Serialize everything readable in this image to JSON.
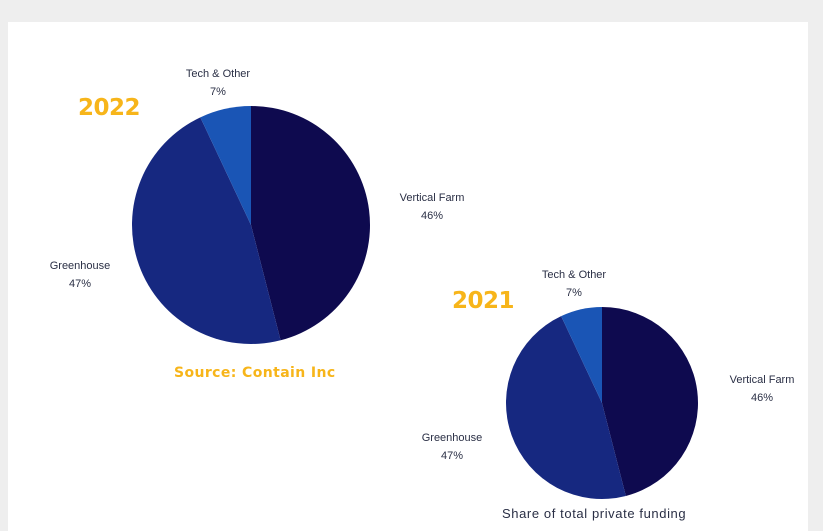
{
  "colors": {
    "accent": "#f7b51a",
    "vertical_farm": "#0e0a4f",
    "greenhouse": "#162880",
    "tech_other": "#1a55b5"
  },
  "source": "Source: Contain Inc",
  "caption": "Share of total private funding",
  "chart_data": [
    {
      "type": "pie",
      "title": "2022",
      "labels": [
        "Vertical Farm",
        "Greenhouse",
        "Tech & Other"
      ],
      "values": [
        46,
        47,
        7
      ],
      "value_labels": [
        "46%",
        "47%",
        "7%"
      ]
    },
    {
      "type": "pie",
      "title": "2021",
      "labels": [
        "Vertical Farm",
        "Greenhouse",
        "Tech & Other"
      ],
      "values": [
        46,
        47,
        7
      ],
      "value_labels": [
        "46%",
        "47%",
        "7%"
      ]
    }
  ]
}
